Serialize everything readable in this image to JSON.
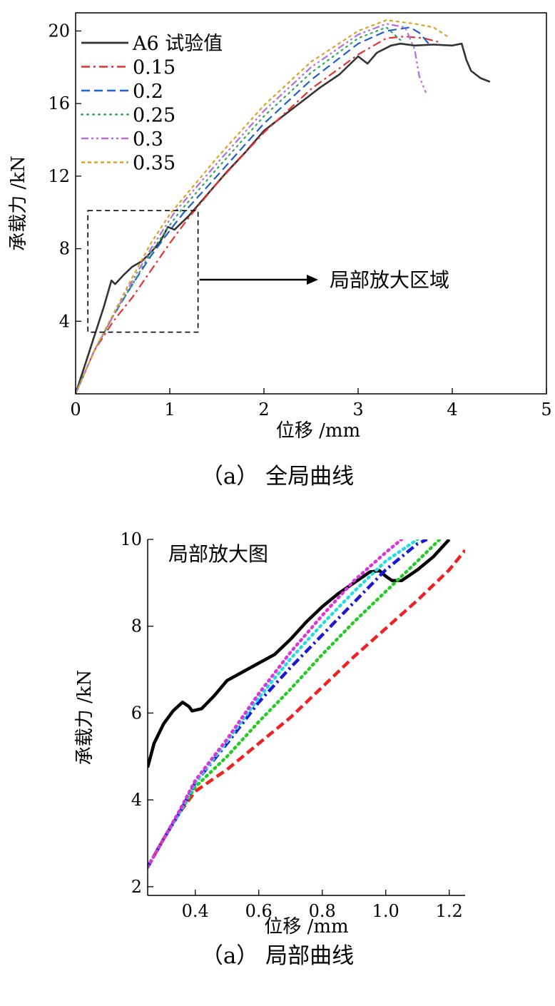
{
  "captions": [
    "（a） 全局曲线",
    "（a） 局部曲线"
  ],
  "chart_data": [
    {
      "type": "line",
      "title": "",
      "xlabel": "位移 /mm",
      "ylabel": "承载力 /kN",
      "xlim": [
        0,
        5
      ],
      "ylim": [
        0,
        21
      ],
      "x_ticks": [
        "0",
        "1",
        "2",
        "3",
        "4",
        "5"
      ],
      "y_ticks": [
        "4",
        "8",
        "12",
        "16",
        "20"
      ],
      "legend_placement": "top-left",
      "grid": false,
      "annotation": "局部放大区域",
      "zoom_box": {
        "x": [
          0.13,
          1.3
        ],
        "y": [
          3.4,
          10.1
        ]
      },
      "series": [
        {
          "name": "A6 试验值",
          "color": "#333333",
          "style": "solid",
          "points": [
            [
              0,
              0
            ],
            [
              0.1,
              1.6
            ],
            [
              0.2,
              3.2
            ],
            [
              0.3,
              4.8
            ],
            [
              0.38,
              6.25
            ],
            [
              0.42,
              6.05
            ],
            [
              0.5,
              6.5
            ],
            [
              0.6,
              7.0
            ],
            [
              0.7,
              7.3
            ],
            [
              0.8,
              7.8
            ],
            [
              0.9,
              8.4
            ],
            [
              0.98,
              9.2
            ],
            [
              1.05,
              9.05
            ],
            [
              1.2,
              9.8
            ],
            [
              1.4,
              11.0
            ],
            [
              1.6,
              12.2
            ],
            [
              1.8,
              13.3
            ],
            [
              2.0,
              14.5
            ],
            [
              2.2,
              15.3
            ],
            [
              2.4,
              16.1
            ],
            [
              2.6,
              16.9
            ],
            [
              2.8,
              17.6
            ],
            [
              3.0,
              18.6
            ],
            [
              3.1,
              18.2
            ],
            [
              3.2,
              18.8
            ],
            [
              3.35,
              19.2
            ],
            [
              3.45,
              19.3
            ],
            [
              3.6,
              19.2
            ],
            [
              3.8,
              19.25
            ],
            [
              4.0,
              19.2
            ],
            [
              4.1,
              19.3
            ],
            [
              4.15,
              18.4
            ],
            [
              4.2,
              17.8
            ],
            [
              4.3,
              17.4
            ],
            [
              4.4,
              17.2
            ]
          ]
        },
        {
          "name": "0.15",
          "color": "#e8312f",
          "style": "dashdot",
          "points": [
            [
              0,
              0
            ],
            [
              0.2,
              2.4
            ],
            [
              0.4,
              4.0
            ],
            [
              0.6,
              5.3
            ],
            [
              0.8,
              6.8
            ],
            [
              1.0,
              8.3
            ],
            [
              1.2,
              9.7
            ],
            [
              1.5,
              11.6
            ],
            [
              2.0,
              14.4
            ],
            [
              2.5,
              16.8
            ],
            [
              3.0,
              18.7
            ],
            [
              3.3,
              19.6
            ],
            [
              3.5,
              19.7
            ],
            [
              3.7,
              19.6
            ],
            [
              3.85,
              19.4
            ]
          ]
        },
        {
          "name": "0.2",
          "color": "#1f5fd0",
          "style": "dashed",
          "points": [
            [
              0,
              0
            ],
            [
              0.2,
              2.4
            ],
            [
              0.4,
              4.3
            ],
            [
              0.6,
              6.0
            ],
            [
              0.8,
              7.6
            ],
            [
              1.0,
              9.0
            ],
            [
              1.15,
              10.0
            ],
            [
              1.5,
              12.0
            ],
            [
              2.0,
              14.9
            ],
            [
              2.5,
              17.3
            ],
            [
              3.0,
              19.3
            ],
            [
              3.3,
              20.0
            ],
            [
              3.55,
              20.2
            ],
            [
              3.65,
              19.9
            ],
            [
              3.75,
              19.3
            ]
          ]
        },
        {
          "name": "0.25",
          "color": "#2ea85a",
          "style": "dotted",
          "points": [
            [
              0,
              0
            ],
            [
              0.2,
              2.4
            ],
            [
              0.4,
              4.3
            ],
            [
              0.6,
              6.0
            ],
            [
              0.8,
              7.8
            ],
            [
              1.0,
              9.3
            ],
            [
              1.1,
              10.0
            ],
            [
              1.5,
              12.4
            ],
            [
              2.0,
              15.3
            ],
            [
              2.5,
              17.7
            ],
            [
              3.0,
              19.6
            ],
            [
              3.3,
              20.2
            ],
            [
              3.45,
              19.5
            ]
          ]
        },
        {
          "name": "0.3",
          "color": "#b36ee0",
          "style": "dashdotdot",
          "points": [
            [
              0,
              0
            ],
            [
              0.2,
              2.4
            ],
            [
              0.4,
              4.3
            ],
            [
              0.6,
              6.2
            ],
            [
              0.8,
              8.0
            ],
            [
              1.0,
              9.6
            ],
            [
              1.05,
              10.0
            ],
            [
              1.5,
              12.7
            ],
            [
              2.0,
              15.6
            ],
            [
              2.5,
              18.0
            ],
            [
              3.0,
              19.8
            ],
            [
              3.3,
              20.4
            ],
            [
              3.5,
              20.2
            ],
            [
              3.6,
              19.0
            ],
            [
              3.65,
              17.5
            ],
            [
              3.72,
              16.6
            ]
          ]
        },
        {
          "name": "0.35",
          "color": "#d9a520",
          "style": "shortdash",
          "points": [
            [
              0,
              0
            ],
            [
              0.2,
              2.4
            ],
            [
              0.4,
              4.4
            ],
            [
              0.6,
              6.4
            ],
            [
              0.8,
              8.3
            ],
            [
              1.0,
              9.9
            ],
            [
              1.5,
              13.0
            ],
            [
              2.0,
              15.9
            ],
            [
              2.5,
              18.3
            ],
            [
              3.0,
              20.0
            ],
            [
              3.3,
              20.6
            ],
            [
              3.6,
              20.4
            ],
            [
              3.8,
              20.2
            ],
            [
              3.95,
              19.7
            ]
          ]
        }
      ]
    },
    {
      "type": "line",
      "title": "局部放大图",
      "xlabel": "位移 /mm",
      "ylabel": "承载力 /kN",
      "xlim": [
        0.25,
        1.25
      ],
      "ylim": [
        1.8,
        10
      ],
      "x_ticks": [
        "0.4",
        "0.6",
        "0.8",
        "1.0",
        "1.2"
      ],
      "y_ticks": [
        "2",
        "4",
        "6",
        "8",
        "10"
      ],
      "grid": false,
      "series": [
        {
          "color": "#000000",
          "style": "solid",
          "points": [
            [
              0.25,
              4.75
            ],
            [
              0.27,
              5.3
            ],
            [
              0.3,
              5.75
            ],
            [
              0.33,
              6.05
            ],
            [
              0.36,
              6.25
            ],
            [
              0.38,
              6.15
            ],
            [
              0.39,
              6.05
            ],
            [
              0.42,
              6.1
            ],
            [
              0.46,
              6.4
            ],
            [
              0.5,
              6.75
            ],
            [
              0.55,
              6.95
            ],
            [
              0.6,
              7.15
            ],
            [
              0.65,
              7.35
            ],
            [
              0.7,
              7.7
            ],
            [
              0.75,
              8.1
            ],
            [
              0.8,
              8.45
            ],
            [
              0.85,
              8.75
            ],
            [
              0.9,
              9.0
            ],
            [
              0.95,
              9.25
            ],
            [
              0.98,
              9.28
            ],
            [
              1.0,
              9.15
            ],
            [
              1.02,
              9.05
            ],
            [
              1.05,
              9.05
            ],
            [
              1.1,
              9.3
            ],
            [
              1.15,
              9.6
            ],
            [
              1.2,
              10.0
            ]
          ]
        },
        {
          "color": "#ee2222",
          "style": "dashed",
          "points": [
            [
              0.25,
              2.45
            ],
            [
              0.3,
              3.1
            ],
            [
              0.35,
              3.7
            ],
            [
              0.4,
              4.2
            ],
            [
              0.5,
              4.7
            ],
            [
              0.6,
              5.3
            ],
            [
              0.7,
              5.9
            ],
            [
              0.8,
              6.6
            ],
            [
              0.9,
              7.3
            ],
            [
              1.0,
              7.95
            ],
            [
              1.1,
              8.6
            ],
            [
              1.2,
              9.3
            ],
            [
              1.25,
              9.75
            ]
          ]
        },
        {
          "color": "#22cc22",
          "style": "dotted",
          "points": [
            [
              0.25,
              2.45
            ],
            [
              0.3,
              3.1
            ],
            [
              0.35,
              3.7
            ],
            [
              0.4,
              4.3
            ],
            [
              0.5,
              5.0
            ],
            [
              0.6,
              5.8
            ],
            [
              0.7,
              6.55
            ],
            [
              0.8,
              7.35
            ],
            [
              0.9,
              8.1
            ],
            [
              1.0,
              8.8
            ],
            [
              1.1,
              9.5
            ],
            [
              1.17,
              10.0
            ]
          ]
        },
        {
          "color": "#1a1ad6",
          "style": "dashdot",
          "points": [
            [
              0.25,
              2.45
            ],
            [
              0.3,
              3.1
            ],
            [
              0.35,
              3.7
            ],
            [
              0.4,
              4.4
            ],
            [
              0.5,
              5.3
            ],
            [
              0.6,
              6.25
            ],
            [
              0.7,
              7.05
            ],
            [
              0.8,
              7.8
            ],
            [
              0.9,
              8.55
            ],
            [
              1.0,
              9.3
            ],
            [
              1.1,
              9.9
            ],
            [
              1.13,
              10.0
            ]
          ]
        },
        {
          "color": "#22dddd",
          "style": "dotted",
          "points": [
            [
              0.25,
              2.45
            ],
            [
              0.3,
              3.1
            ],
            [
              0.35,
              3.7
            ],
            [
              0.4,
              4.4
            ],
            [
              0.5,
              5.35
            ],
            [
              0.6,
              6.35
            ],
            [
              0.7,
              7.25
            ],
            [
              0.8,
              8.05
            ],
            [
              0.9,
              8.8
            ],
            [
              1.0,
              9.5
            ],
            [
              1.1,
              10.0
            ]
          ]
        },
        {
          "color": "#dd33dd",
          "style": "dotted",
          "points": [
            [
              0.25,
              2.45
            ],
            [
              0.3,
              3.1
            ],
            [
              0.35,
              3.75
            ],
            [
              0.4,
              4.45
            ],
            [
              0.5,
              5.4
            ],
            [
              0.6,
              6.45
            ],
            [
              0.7,
              7.4
            ],
            [
              0.8,
              8.25
            ],
            [
              0.9,
              9.05
            ],
            [
              1.0,
              9.7
            ],
            [
              1.05,
              10.0
            ]
          ]
        }
      ]
    }
  ]
}
